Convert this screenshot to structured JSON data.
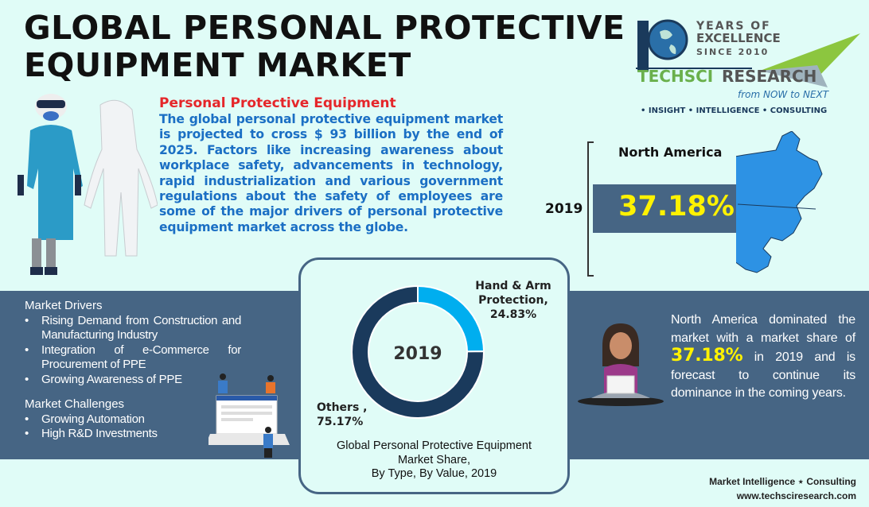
{
  "title": {
    "line1": "GLOBAL PERSONAL PROTECTIVE",
    "line2": "EQUIPMENT MARKET"
  },
  "intro": {
    "heading": "Personal Protective Equipment",
    "body": "The global personal protective equipment market is projected to cross $ 93 billion by the end of 2025. Factors like increasing awareness about workplace safety, advancements in technology, rapid industrialization and various government regulations about the safety of employees are some of the major drivers of personal protective equipment market across the globe."
  },
  "logo": {
    "years": "YEARS OF",
    "excellence": "EXCELLENCE",
    "since": "SINCE 2010",
    "brand1": "TECHSCI",
    "brand2": "RESEARCH",
    "tagline": "from NOW to NEXT",
    "pillars": "• INSIGHT  • INTELLIGENCE  • CONSULTING"
  },
  "region": {
    "name": "North America",
    "year": "2019",
    "share": "37.18%"
  },
  "drivers": {
    "heading": "Market Drivers",
    "items": [
      "Rising Demand from Construction and Manufacturing Industry",
      "Integration of e-Commerce for Procurement of PPE",
      "Growing Awareness of PPE"
    ]
  },
  "challenges": {
    "heading": "Market Challenges",
    "items": [
      "Growing Automation",
      "High R&D Investments"
    ]
  },
  "chart_data": {
    "type": "pie",
    "donut": true,
    "center_label": "2019",
    "title": "Global Personal Protective Equipment Market Share, By Type, By Value, 2019",
    "title_lines": [
      "Global Personal Protective Equipment",
      "Market Share,",
      "By Type, By Value, 2019"
    ],
    "categories": [
      "Hand & Arm Protection",
      "Others"
    ],
    "values": [
      24.83,
      75.17
    ],
    "labels": [
      {
        "l1": "Hand & Arm",
        "l2": "Protection,",
        "l3": "24.83%"
      },
      {
        "l1": "Others ,",
        "l2": "75.17%"
      }
    ],
    "colors": [
      "#00aeef",
      "#1a3a5c"
    ]
  },
  "summary": {
    "part1": "North America dominated the market with a market share of ",
    "highlight": "37.18%",
    "part2": " in 2019 and is forecast to continue its dominance in the coming years."
  },
  "footer": {
    "line1": "Market Intelligence ⋆ Consulting",
    "line2": "www.techsciresearch.com"
  },
  "colors": {
    "background": "#e0fcf7",
    "band": "#466584",
    "accent_yellow": "#fff200",
    "heading_red": "#e5262a",
    "body_blue": "#1b6fc4"
  }
}
